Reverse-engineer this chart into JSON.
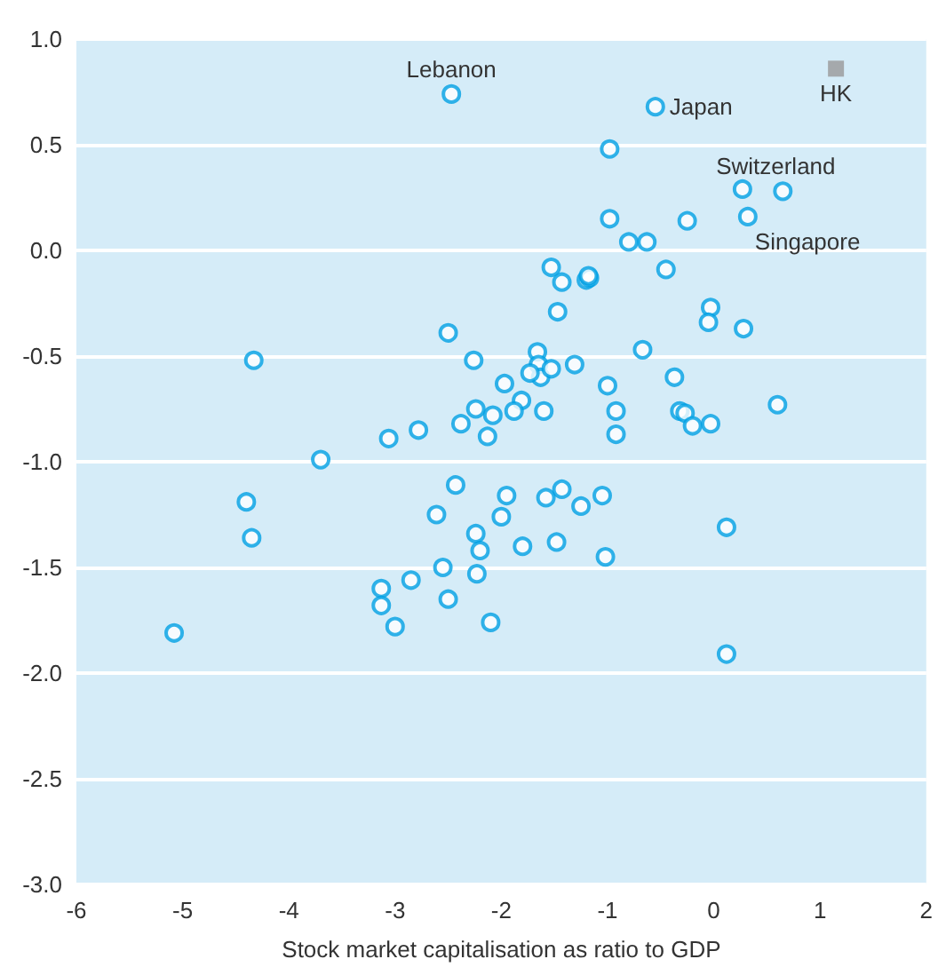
{
  "chart_data": {
    "type": "scatter",
    "xlabel": "Stock market capitalisation as ratio to GDP",
    "xlim": [
      -6,
      2
    ],
    "xticks": [
      -6,
      -5,
      -4,
      -3,
      -2,
      -1,
      0,
      1,
      2
    ],
    "ylim": [
      -3,
      1
    ],
    "yticks": [
      {
        "value": -3,
        "label": "-3.0"
      },
      {
        "value": -2.5,
        "label": "-2.5"
      },
      {
        "value": -2,
        "label": "-2.0"
      },
      {
        "value": -1.5,
        "label": "-1.5"
      },
      {
        "value": -1,
        "label": "-1.0"
      },
      {
        "value": -0.5,
        "label": "-0.5"
      },
      {
        "value": 0,
        "label": "0.0"
      },
      {
        "value": 0.5,
        "label": "0.5"
      },
      {
        "value": 1,
        "label": "1.0"
      }
    ],
    "grid": "y",
    "series": [
      {
        "color": "#00a0e3",
        "marker": "circle",
        "x": [
          -2.47,
          -0.55,
          -0.98,
          0.27,
          0.65,
          -0.98,
          -0.25,
          0.32,
          -0.8,
          -0.63,
          -1.53,
          -1.43,
          -1.2,
          -1.17,
          -1.18,
          -0.45,
          -0.03,
          -0.05,
          0.28,
          -1.47,
          -2.5,
          -0.67,
          -1.66,
          -2.26,
          -4.33,
          -1.65,
          -1.63,
          -1.73,
          -1.53,
          -1.31,
          -0.37,
          -1.97,
          -1.0,
          -1.81,
          -2.24,
          -2.08,
          -1.88,
          -1.6,
          -0.92,
          -0.32,
          -0.27,
          0.6,
          -2.38,
          -2.78,
          -3.06,
          -2.13,
          -0.2,
          -0.92,
          -0.03,
          -3.7,
          -2.43,
          -1.95,
          -1.58,
          -1.43,
          -1.05,
          -4.4,
          -2.61,
          -2.0,
          -1.25,
          0.12,
          -4.35,
          -2.24,
          -1.48,
          -1.8,
          -2.2,
          -1.02,
          -2.55,
          -2.23,
          -2.85,
          -3.13,
          -2.5,
          -3.13,
          -3.0,
          -2.1,
          -5.08,
          0.12
        ],
        "values": [
          0.74,
          0.68,
          0.48,
          0.29,
          0.28,
          0.15,
          0.14,
          0.16,
          0.04,
          0.04,
          -0.08,
          -0.15,
          -0.14,
          -0.13,
          -0.12,
          -0.09,
          -0.27,
          -0.34,
          -0.37,
          -0.29,
          -0.39,
          -0.47,
          -0.48,
          -0.52,
          -0.52,
          -0.54,
          -0.6,
          -0.58,
          -0.56,
          -0.54,
          -0.6,
          -0.63,
          -0.64,
          -0.71,
          -0.75,
          -0.78,
          -0.76,
          -0.76,
          -0.76,
          -0.76,
          -0.77,
          -0.73,
          -0.82,
          -0.85,
          -0.89,
          -0.88,
          -0.83,
          -0.87,
          -0.82,
          -0.99,
          -1.11,
          -1.16,
          -1.17,
          -1.13,
          -1.16,
          -1.19,
          -1.25,
          -1.26,
          -1.21,
          -1.31,
          -1.36,
          -1.34,
          -1.38,
          -1.4,
          -1.42,
          -1.45,
          -1.5,
          -1.53,
          -1.56,
          -1.6,
          -1.65,
          -1.68,
          -1.78,
          -1.76,
          -1.81,
          -1.91
        ]
      },
      {
        "color": "#999999",
        "marker": "square",
        "x": [
          1.15
        ],
        "values": [
          0.86
        ]
      }
    ],
    "annotations": [
      {
        "text": "Lebanon",
        "x": -2.47,
        "y": 0.74
      },
      {
        "text": "Japan",
        "x": -0.55,
        "y": 0.68
      },
      {
        "text": "HK",
        "x": 1.15,
        "y": 0.86
      },
      {
        "text": "Switzerland",
        "x": 0.65,
        "y": 0.28
      },
      {
        "text": "Singapore",
        "x": 0.32,
        "y": 0.16
      }
    ]
  }
}
